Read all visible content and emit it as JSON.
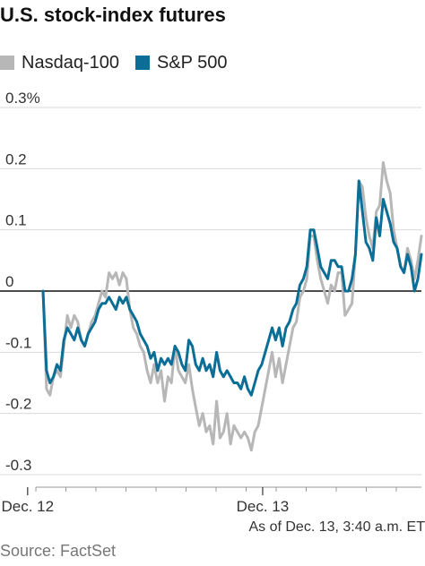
{
  "chart_data": {
    "type": "line",
    "title": "U.S. stock-index futures",
    "ylim": [
      -0.3,
      0.3
    ],
    "y_ticks": [
      {
        "value": 0.3,
        "label": "0.3%"
      },
      {
        "value": 0.2,
        "label": "0.2"
      },
      {
        "value": 0.1,
        "label": "0.1"
      },
      {
        "value": 0,
        "label": "0"
      },
      {
        "value": -0.1,
        "label": "-0.1"
      },
      {
        "value": -0.2,
        "label": "-0.2"
      },
      {
        "value": -0.3,
        "label": "-0.3"
      }
    ],
    "x_ticks": [
      {
        "label": "Dec. 12",
        "at": 0.065
      },
      {
        "label": "Dec. 13",
        "at": 0.618
      }
    ],
    "series": [
      {
        "name": "Nasdaq-100",
        "color": "#b7b7b7",
        "values": [
          0.0,
          -0.16,
          -0.17,
          -0.14,
          -0.13,
          -0.14,
          -0.09,
          -0.04,
          -0.06,
          -0.04,
          -0.05,
          -0.08,
          -0.09,
          -0.07,
          -0.05,
          -0.04,
          -0.02,
          0.0,
          -0.01,
          0.03,
          0.02,
          0.03,
          0.01,
          0.03,
          0.02,
          -0.03,
          -0.06,
          -0.07,
          -0.09,
          -0.1,
          -0.13,
          -0.15,
          -0.12,
          -0.15,
          -0.13,
          -0.18,
          -0.14,
          -0.15,
          -0.09,
          -0.13,
          -0.14,
          -0.15,
          -0.12,
          -0.16,
          -0.19,
          -0.22,
          -0.2,
          -0.23,
          -0.22,
          -0.25,
          -0.18,
          -0.24,
          -0.23,
          -0.2,
          -0.25,
          -0.22,
          -0.23,
          -0.24,
          -0.23,
          -0.24,
          -0.26,
          -0.23,
          -0.22,
          -0.19,
          -0.16,
          -0.13,
          -0.1,
          -0.14,
          -0.11,
          -0.15,
          -0.12,
          -0.09,
          -0.06,
          -0.05,
          -0.01,
          0.0,
          0.02,
          0.09,
          0.09,
          0.05,
          0.02,
          0.0,
          -0.02,
          0.01,
          0.0,
          0.03,
          0.03,
          -0.04,
          -0.03,
          -0.02,
          0.06,
          0.18,
          0.17,
          0.12,
          0.09,
          0.07,
          0.13,
          0.14,
          0.21,
          0.18,
          0.16,
          0.1,
          0.07,
          0.04,
          0.03,
          0.07,
          0.05,
          0.02,
          0.05,
          0.09
        ]
      },
      {
        "name": "S&P 500",
        "color": "#0b6e96",
        "values": [
          0.0,
          -0.13,
          -0.15,
          -0.14,
          -0.12,
          -0.13,
          -0.08,
          -0.06,
          -0.07,
          -0.08,
          -0.06,
          -0.08,
          -0.09,
          -0.07,
          -0.06,
          -0.05,
          -0.03,
          -0.02,
          -0.02,
          -0.01,
          -0.02,
          -0.03,
          -0.01,
          -0.02,
          -0.01,
          -0.03,
          -0.04,
          -0.05,
          -0.07,
          -0.08,
          -0.09,
          -0.11,
          -0.1,
          -0.13,
          -0.11,
          -0.12,
          -0.11,
          -0.12,
          -0.09,
          -0.1,
          -0.12,
          -0.13,
          -0.08,
          -0.09,
          -0.12,
          -0.13,
          -0.11,
          -0.13,
          -0.12,
          -0.14,
          -0.1,
          -0.13,
          -0.14,
          -0.13,
          -0.14,
          -0.15,
          -0.15,
          -0.16,
          -0.14,
          -0.16,
          -0.17,
          -0.15,
          -0.13,
          -0.12,
          -0.1,
          -0.08,
          -0.06,
          -0.08,
          -0.06,
          -0.09,
          -0.06,
          -0.05,
          -0.03,
          -0.02,
          0.01,
          0.02,
          0.04,
          0.1,
          0.1,
          0.07,
          0.04,
          0.03,
          0.02,
          0.05,
          0.05,
          0.04,
          0.04,
          0.0,
          0.0,
          0.02,
          0.06,
          0.18,
          0.13,
          0.08,
          0.07,
          0.05,
          0.12,
          0.09,
          0.15,
          0.13,
          0.11,
          0.08,
          0.07,
          0.04,
          0.03,
          0.06,
          0.04,
          0.0,
          0.02,
          0.06
        ]
      }
    ]
  },
  "note": "As of Dec. 13, 3:40 a.m. ET",
  "source": "Source: FactSet"
}
